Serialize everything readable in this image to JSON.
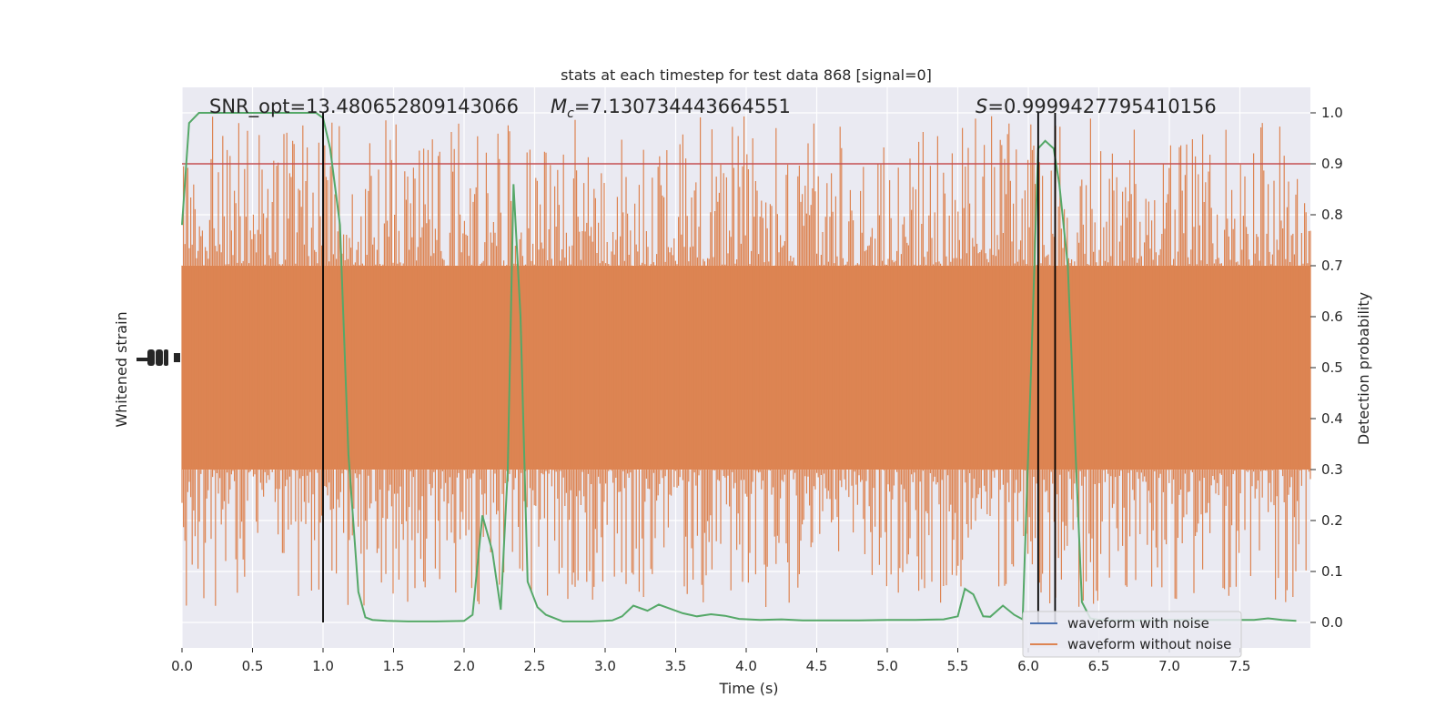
{
  "chart_data": {
    "type": "line",
    "title": "stats at each timestep for test data 868 [signal=0]",
    "xlabel": "Time (s)",
    "ylabel_left": "Whitened strain",
    "ylabel_right": "Detection probability",
    "xlim": [
      0.0,
      8.0
    ],
    "ylim_right": [
      -0.05,
      1.05
    ],
    "x_ticks": [
      "0.0",
      "0.5",
      "1.0",
      "1.5",
      "2.0",
      "2.5",
      "3.0",
      "3.5",
      "4.0",
      "4.5",
      "5.0",
      "5.5",
      "6.0",
      "6.5",
      "7.0",
      "7.5"
    ],
    "x_tick_values": [
      0.0,
      0.5,
      1.0,
      1.5,
      2.0,
      2.5,
      3.0,
      3.5,
      4.0,
      4.5,
      5.0,
      5.5,
      6.0,
      6.5,
      7.0,
      7.5
    ],
    "y_ticks_right": [
      "0.0",
      "0.1",
      "0.2",
      "0.3",
      "0.4",
      "0.5",
      "0.6",
      "0.7",
      "0.8",
      "0.9",
      "1.0"
    ],
    "y_tick_values_right": [
      0.0,
      0.1,
      0.2,
      0.3,
      0.4,
      0.5,
      0.6,
      0.7,
      0.8,
      0.9,
      1.0
    ],
    "annotations": {
      "snr": "SNR_opt=13.480652809143066",
      "mc_symbol": "M",
      "mc_sub": "c",
      "mc_value": "=7.130734443664551",
      "s_symbol": "S",
      "s_value": "=0.9999427795410156"
    },
    "threshold": 0.9,
    "vertical_lines": [
      1.0,
      6.07,
      6.19
    ],
    "series": [
      {
        "name": "waveform with noise",
        "color": "#4c72b0",
        "values": []
      },
      {
        "name": "waveform without noise",
        "color": "#dd8452",
        "envelope": {
          "dense_band": [
            0.3,
            0.7
          ],
          "spike_range": [
            0.03,
            1.0
          ]
        }
      }
    ],
    "detection_probability": {
      "color": "#55a868",
      "x": [
        0.0,
        0.05,
        0.12,
        0.2,
        0.4,
        0.6,
        0.8,
        0.95,
        1.0,
        1.05,
        1.12,
        1.18,
        1.25,
        1.3,
        1.35,
        1.45,
        1.6,
        1.8,
        2.0,
        2.06,
        2.13,
        2.2,
        2.26,
        2.31,
        2.35,
        2.4,
        2.45,
        2.52,
        2.58,
        2.7,
        2.9,
        3.05,
        3.12,
        3.2,
        3.3,
        3.38,
        3.45,
        3.55,
        3.65,
        3.75,
        3.85,
        3.95,
        4.1,
        4.25,
        4.4,
        4.6,
        4.8,
        5.0,
        5.2,
        5.4,
        5.5,
        5.55,
        5.61,
        5.68,
        5.73,
        5.82,
        5.9,
        5.96,
        6.02,
        6.07,
        6.12,
        6.18,
        6.22,
        6.28,
        6.34,
        6.38,
        6.44,
        6.5,
        6.56,
        6.62,
        6.7,
        6.8,
        6.9,
        7.0,
        7.1,
        7.2,
        7.3,
        7.4,
        7.5,
        7.6,
        7.7,
        7.8,
        7.9
      ],
      "y": [
        0.78,
        0.98,
        1.0,
        1.0,
        1.0,
        1.0,
        1.0,
        1.0,
        0.99,
        0.93,
        0.78,
        0.33,
        0.06,
        0.01,
        0.005,
        0.003,
        0.002,
        0.002,
        0.003,
        0.015,
        0.21,
        0.14,
        0.025,
        0.3,
        0.86,
        0.6,
        0.08,
        0.03,
        0.015,
        0.002,
        0.002,
        0.004,
        0.012,
        0.033,
        0.023,
        0.035,
        0.028,
        0.018,
        0.012,
        0.016,
        0.013,
        0.007,
        0.005,
        0.006,
        0.004,
        0.004,
        0.004,
        0.005,
        0.005,
        0.006,
        0.012,
        0.066,
        0.055,
        0.012,
        0.011,
        0.033,
        0.015,
        0.006,
        0.5,
        0.93,
        0.945,
        0.93,
        0.86,
        0.7,
        0.3,
        0.04,
        0.008,
        0.005,
        0.004,
        0.004,
        0.004,
        0.004,
        0.004,
        0.005,
        0.005,
        0.005,
        0.005,
        0.005,
        0.005,
        0.005,
        0.008,
        0.005,
        0.003
      ]
    }
  }
}
